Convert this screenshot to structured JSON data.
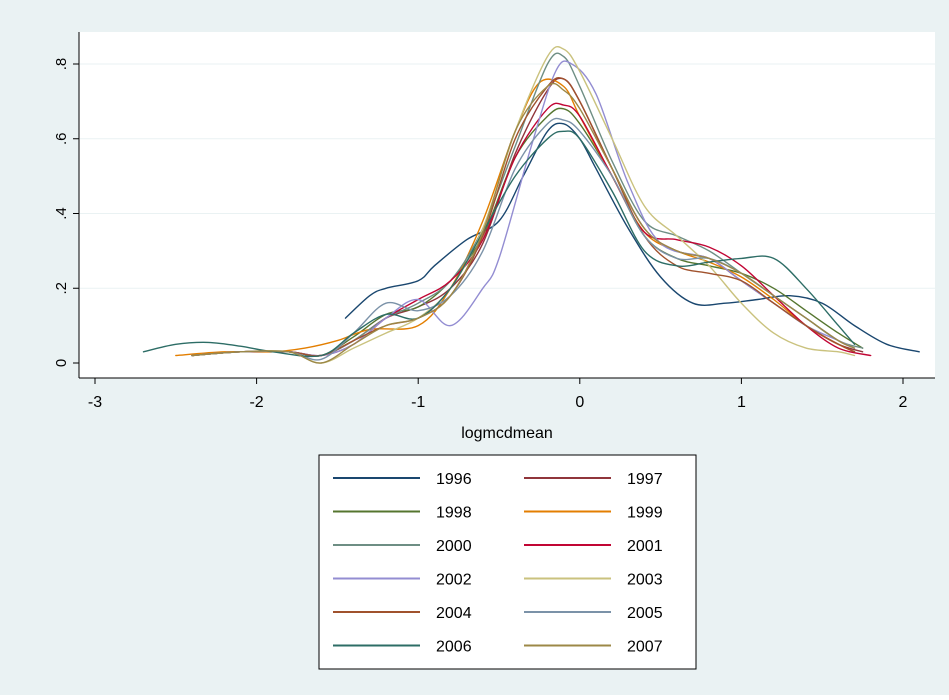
{
  "chart_data": {
    "type": "line",
    "title": "",
    "xlabel": "logmcdmean",
    "ylabel": "",
    "xlim": [
      -3,
      2.1
    ],
    "ylim": [
      0,
      0.85
    ],
    "xticks": [
      {
        "value": -3,
        "label": "-3"
      },
      {
        "value": -2,
        "label": "-2"
      },
      {
        "value": -1,
        "label": "-1"
      },
      {
        "value": 0,
        "label": "0"
      },
      {
        "value": 1,
        "label": "1"
      },
      {
        "value": 2,
        "label": "2"
      }
    ],
    "yticks": [
      {
        "value": 0,
        "label": "0"
      },
      {
        "value": 0.2,
        "label": ".2"
      },
      {
        "value": 0.4,
        "label": ".4"
      },
      {
        "value": 0.6,
        "label": ".6"
      },
      {
        "value": 0.8,
        "label": ".8"
      }
    ],
    "grid": true,
    "legend_position": "bottom",
    "colors": {
      "outer_background": "#eaf2f3",
      "plot_background": "#ffffff",
      "grid": "#eaf2f3",
      "axis": "#000000"
    },
    "series": [
      {
        "name": "1996",
        "color": "#1a476f",
        "x": [
          -1.45,
          -1.3,
          -1.2,
          -1.0,
          -0.9,
          -0.7,
          -0.5,
          -0.35,
          -0.2,
          -0.1,
          0,
          0.1,
          0.3,
          0.5,
          0.7,
          0.9,
          1.1,
          1.3,
          1.5,
          1.7,
          1.9,
          2.1
        ],
        "y": [
          0.12,
          0.18,
          0.2,
          0.22,
          0.26,
          0.33,
          0.38,
          0.5,
          0.62,
          0.64,
          0.6,
          0.52,
          0.36,
          0.23,
          0.16,
          0.16,
          0.17,
          0.18,
          0.16,
          0.1,
          0.05,
          0.03
        ]
      },
      {
        "name": "1997",
        "color": "#90353b",
        "x": [
          -2.4,
          -2.1,
          -1.8,
          -1.6,
          -1.4,
          -1.2,
          -1.0,
          -0.8,
          -0.6,
          -0.4,
          -0.2,
          -0.1,
          0,
          0.2,
          0.4,
          0.6,
          0.8,
          1.0,
          1.2,
          1.4,
          1.6,
          1.75
        ],
        "y": [
          0.02,
          0.03,
          0.03,
          0.02,
          0.06,
          0.12,
          0.15,
          0.2,
          0.32,
          0.56,
          0.73,
          0.76,
          0.7,
          0.52,
          0.36,
          0.3,
          0.28,
          0.22,
          0.16,
          0.1,
          0.05,
          0.03
        ]
      },
      {
        "name": "1998",
        "color": "#55752f",
        "x": [
          -2.4,
          -2.1,
          -1.8,
          -1.6,
          -1.4,
          -1.2,
          -1.0,
          -0.8,
          -0.6,
          -0.4,
          -0.2,
          -0.1,
          0,
          0.2,
          0.4,
          0.6,
          0.8,
          1.0,
          1.2,
          1.4,
          1.6,
          1.75
        ],
        "y": [
          0.02,
          0.03,
          0.03,
          0.02,
          0.07,
          0.13,
          0.15,
          0.22,
          0.34,
          0.55,
          0.66,
          0.68,
          0.64,
          0.5,
          0.34,
          0.28,
          0.26,
          0.24,
          0.2,
          0.14,
          0.08,
          0.04
        ]
      },
      {
        "name": "1999",
        "color": "#e37e00",
        "x": [
          -2.5,
          -2.2,
          -1.9,
          -1.7,
          -1.5,
          -1.3,
          -1.0,
          -0.8,
          -0.6,
          -0.4,
          -0.25,
          -0.1,
          0,
          0.2,
          0.4,
          0.6,
          0.8,
          1.0,
          1.2,
          1.4,
          1.6,
          1.7
        ],
        "y": [
          0.02,
          0.03,
          0.03,
          0.04,
          0.06,
          0.09,
          0.1,
          0.2,
          0.38,
          0.62,
          0.75,
          0.74,
          0.66,
          0.5,
          0.35,
          0.3,
          0.27,
          0.23,
          0.17,
          0.1,
          0.05,
          0.03
        ]
      },
      {
        "name": "2000",
        "color": "#6e8e84",
        "x": [
          -2.4,
          -2.1,
          -1.8,
          -1.6,
          -1.4,
          -1.2,
          -1.0,
          -0.8,
          -0.6,
          -0.4,
          -0.2,
          -0.1,
          0,
          0.2,
          0.4,
          0.6,
          0.8,
          1.0,
          1.2,
          1.4,
          1.6,
          1.75
        ],
        "y": [
          0.02,
          0.03,
          0.03,
          0.02,
          0.06,
          0.12,
          0.16,
          0.22,
          0.36,
          0.58,
          0.8,
          0.82,
          0.74,
          0.54,
          0.38,
          0.34,
          0.3,
          0.24,
          0.18,
          0.12,
          0.06,
          0.04
        ]
      },
      {
        "name": "2001",
        "color": "#c10534",
        "x": [
          -2.4,
          -2.1,
          -1.8,
          -1.6,
          -1.4,
          -1.2,
          -1.0,
          -0.8,
          -0.6,
          -0.4,
          -0.2,
          -0.1,
          0,
          0.2,
          0.4,
          0.6,
          0.8,
          1.0,
          1.2,
          1.4,
          1.6,
          1.8
        ],
        "y": [
          0.02,
          0.03,
          0.03,
          0.02,
          0.05,
          0.12,
          0.17,
          0.22,
          0.33,
          0.55,
          0.68,
          0.69,
          0.66,
          0.5,
          0.35,
          0.33,
          0.31,
          0.26,
          0.18,
          0.1,
          0.04,
          0.02
        ]
      },
      {
        "name": "2002",
        "color": "#938dd2",
        "x": [
          -2.4,
          -2.1,
          -1.8,
          -1.6,
          -1.4,
          -1.2,
          -1.0,
          -0.8,
          -0.6,
          -0.5,
          -0.3,
          -0.15,
          -0.05,
          0.1,
          0.3,
          0.5,
          0.8,
          1.0,
          1.2,
          1.4,
          1.6,
          1.7
        ],
        "y": [
          0.02,
          0.03,
          0.03,
          0.02,
          0.05,
          0.12,
          0.17,
          0.1,
          0.2,
          0.28,
          0.58,
          0.78,
          0.8,
          0.72,
          0.48,
          0.32,
          0.28,
          0.22,
          0.16,
          0.1,
          0.06,
          0.04
        ]
      },
      {
        "name": "2003",
        "color": "#cac27e",
        "x": [
          -2.4,
          -2.1,
          -1.8,
          -1.6,
          -1.4,
          -1.2,
          -1.0,
          -0.8,
          -0.6,
          -0.4,
          -0.2,
          -0.1,
          0,
          0.2,
          0.4,
          0.6,
          0.8,
          1.0,
          1.2,
          1.4,
          1.6,
          1.7
        ],
        "y": [
          0.02,
          0.03,
          0.03,
          0.0,
          0.04,
          0.08,
          0.12,
          0.2,
          0.36,
          0.62,
          0.82,
          0.84,
          0.78,
          0.6,
          0.42,
          0.34,
          0.26,
          0.16,
          0.08,
          0.04,
          0.03,
          0.02
        ]
      },
      {
        "name": "2004",
        "color": "#a0522d",
        "x": [
          -2.4,
          -2.1,
          -1.8,
          -1.6,
          -1.4,
          -1.2,
          -1.0,
          -0.8,
          -0.6,
          -0.4,
          -0.2,
          -0.1,
          0,
          0.2,
          0.4,
          0.6,
          0.8,
          1.0,
          1.2,
          1.4,
          1.6,
          1.7
        ],
        "y": [
          0.02,
          0.03,
          0.03,
          0.02,
          0.06,
          0.1,
          0.12,
          0.18,
          0.34,
          0.6,
          0.74,
          0.76,
          0.7,
          0.52,
          0.34,
          0.26,
          0.24,
          0.22,
          0.16,
          0.1,
          0.05,
          0.03
        ]
      },
      {
        "name": "2005",
        "color": "#7b92a8",
        "x": [
          -2.4,
          -2.1,
          -1.8,
          -1.6,
          -1.4,
          -1.2,
          -1.0,
          -0.8,
          -0.6,
          -0.4,
          -0.2,
          -0.1,
          0,
          0.2,
          0.4,
          0.6,
          0.8,
          1.0,
          1.2,
          1.4,
          1.6,
          1.7
        ],
        "y": [
          0.02,
          0.03,
          0.03,
          0.01,
          0.08,
          0.16,
          0.14,
          0.18,
          0.3,
          0.52,
          0.64,
          0.65,
          0.62,
          0.5,
          0.34,
          0.28,
          0.28,
          0.24,
          0.18,
          0.12,
          0.06,
          0.04
        ]
      },
      {
        "name": "2006",
        "color": "#2d6d66",
        "x": [
          -2.7,
          -2.5,
          -2.3,
          -2.1,
          -1.9,
          -1.6,
          -1.4,
          -1.2,
          -1.0,
          -0.8,
          -0.6,
          -0.4,
          -0.2,
          -0.1,
          0,
          0.2,
          0.4,
          0.6,
          0.8,
          1.0,
          1.2,
          1.4,
          1.6,
          1.7
        ],
        "y": [
          0.03,
          0.05,
          0.055,
          0.045,
          0.03,
          0.02,
          0.08,
          0.13,
          0.12,
          0.2,
          0.35,
          0.5,
          0.6,
          0.62,
          0.6,
          0.46,
          0.3,
          0.26,
          0.27,
          0.28,
          0.28,
          0.2,
          0.1,
          0.05
        ]
      },
      {
        "name": "2007",
        "color": "#9c8847",
        "x": [
          -2.4,
          -2.1,
          -1.8,
          -1.6,
          -1.4,
          -1.2,
          -1.0,
          -0.8,
          -0.6,
          -0.4,
          -0.2,
          -0.1,
          0,
          0.2,
          0.4,
          0.6,
          0.8,
          1.0,
          1.2,
          1.4,
          1.6,
          1.7
        ],
        "y": [
          0.02,
          0.03,
          0.03,
          0.0,
          0.05,
          0.1,
          0.12,
          0.18,
          0.35,
          0.62,
          0.74,
          0.73,
          0.68,
          0.52,
          0.36,
          0.3,
          0.28,
          0.24,
          0.18,
          0.12,
          0.06,
          0.04
        ]
      }
    ]
  }
}
